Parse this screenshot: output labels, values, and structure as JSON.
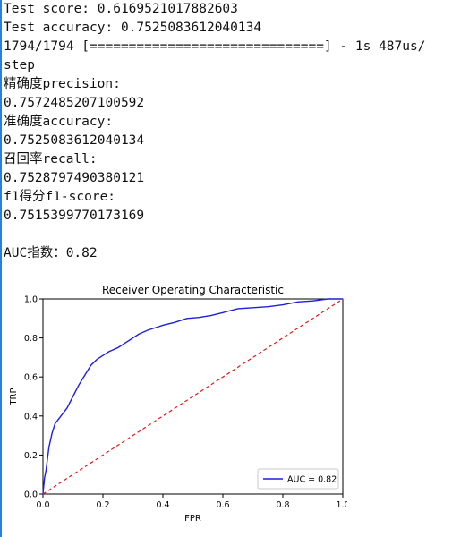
{
  "console": {
    "lines": [
      "Test score: 0.6169521017882603",
      "Test accuracy: 0.7525083612040134",
      "1794/1794 [==============================] - 1s 487us/",
      "step",
      "精确度precision:",
      "0.7572485207100592",
      "准确度accuracy:",
      "0.7525083612040134",
      "召回率recall:",
      "0.7528797490380121",
      "f1得分f1-score:",
      "0.7515399770173169",
      "",
      "AUC指数：0.82"
    ]
  },
  "chart_data": {
    "type": "line",
    "title": "Receiver Operating Characteristic",
    "xlabel": "FPR",
    "ylabel": "TRP",
    "xlim": [
      0,
      1
    ],
    "ylim": [
      0,
      1
    ],
    "xticks": [
      "0.0",
      "0.2",
      "0.4",
      "0.6",
      "0.8",
      "1.0"
    ],
    "yticks": [
      "0.0",
      "0.2",
      "0.4",
      "0.6",
      "0.8",
      "1.0"
    ],
    "grid": false,
    "legend": {
      "placement": "lower-right",
      "entries": [
        "AUC = 0.82"
      ]
    },
    "series": [
      {
        "name": "AUC = 0.82",
        "color": "#1f1fdc",
        "style": "solid",
        "x": [
          0.0,
          0.005,
          0.01,
          0.015,
          0.02,
          0.03,
          0.04,
          0.05,
          0.06,
          0.08,
          0.1,
          0.12,
          0.14,
          0.16,
          0.18,
          0.2,
          0.22,
          0.25,
          0.28,
          0.3,
          0.32,
          0.35,
          0.38,
          0.4,
          0.44,
          0.48,
          0.52,
          0.56,
          0.6,
          0.65,
          0.7,
          0.75,
          0.8,
          0.85,
          0.9,
          0.95,
          1.0
        ],
        "y": [
          0.0,
          0.08,
          0.12,
          0.18,
          0.24,
          0.31,
          0.36,
          0.38,
          0.4,
          0.44,
          0.5,
          0.56,
          0.61,
          0.66,
          0.69,
          0.71,
          0.73,
          0.75,
          0.78,
          0.8,
          0.82,
          0.84,
          0.855,
          0.865,
          0.88,
          0.9,
          0.905,
          0.915,
          0.93,
          0.95,
          0.955,
          0.96,
          0.97,
          0.985,
          0.99,
          1.0,
          1.0
        ]
      },
      {
        "name": "",
        "color": "#e01b1b",
        "style": "dashed",
        "x": [
          0.0,
          1.0
        ],
        "y": [
          0.0,
          1.0
        ]
      }
    ]
  }
}
